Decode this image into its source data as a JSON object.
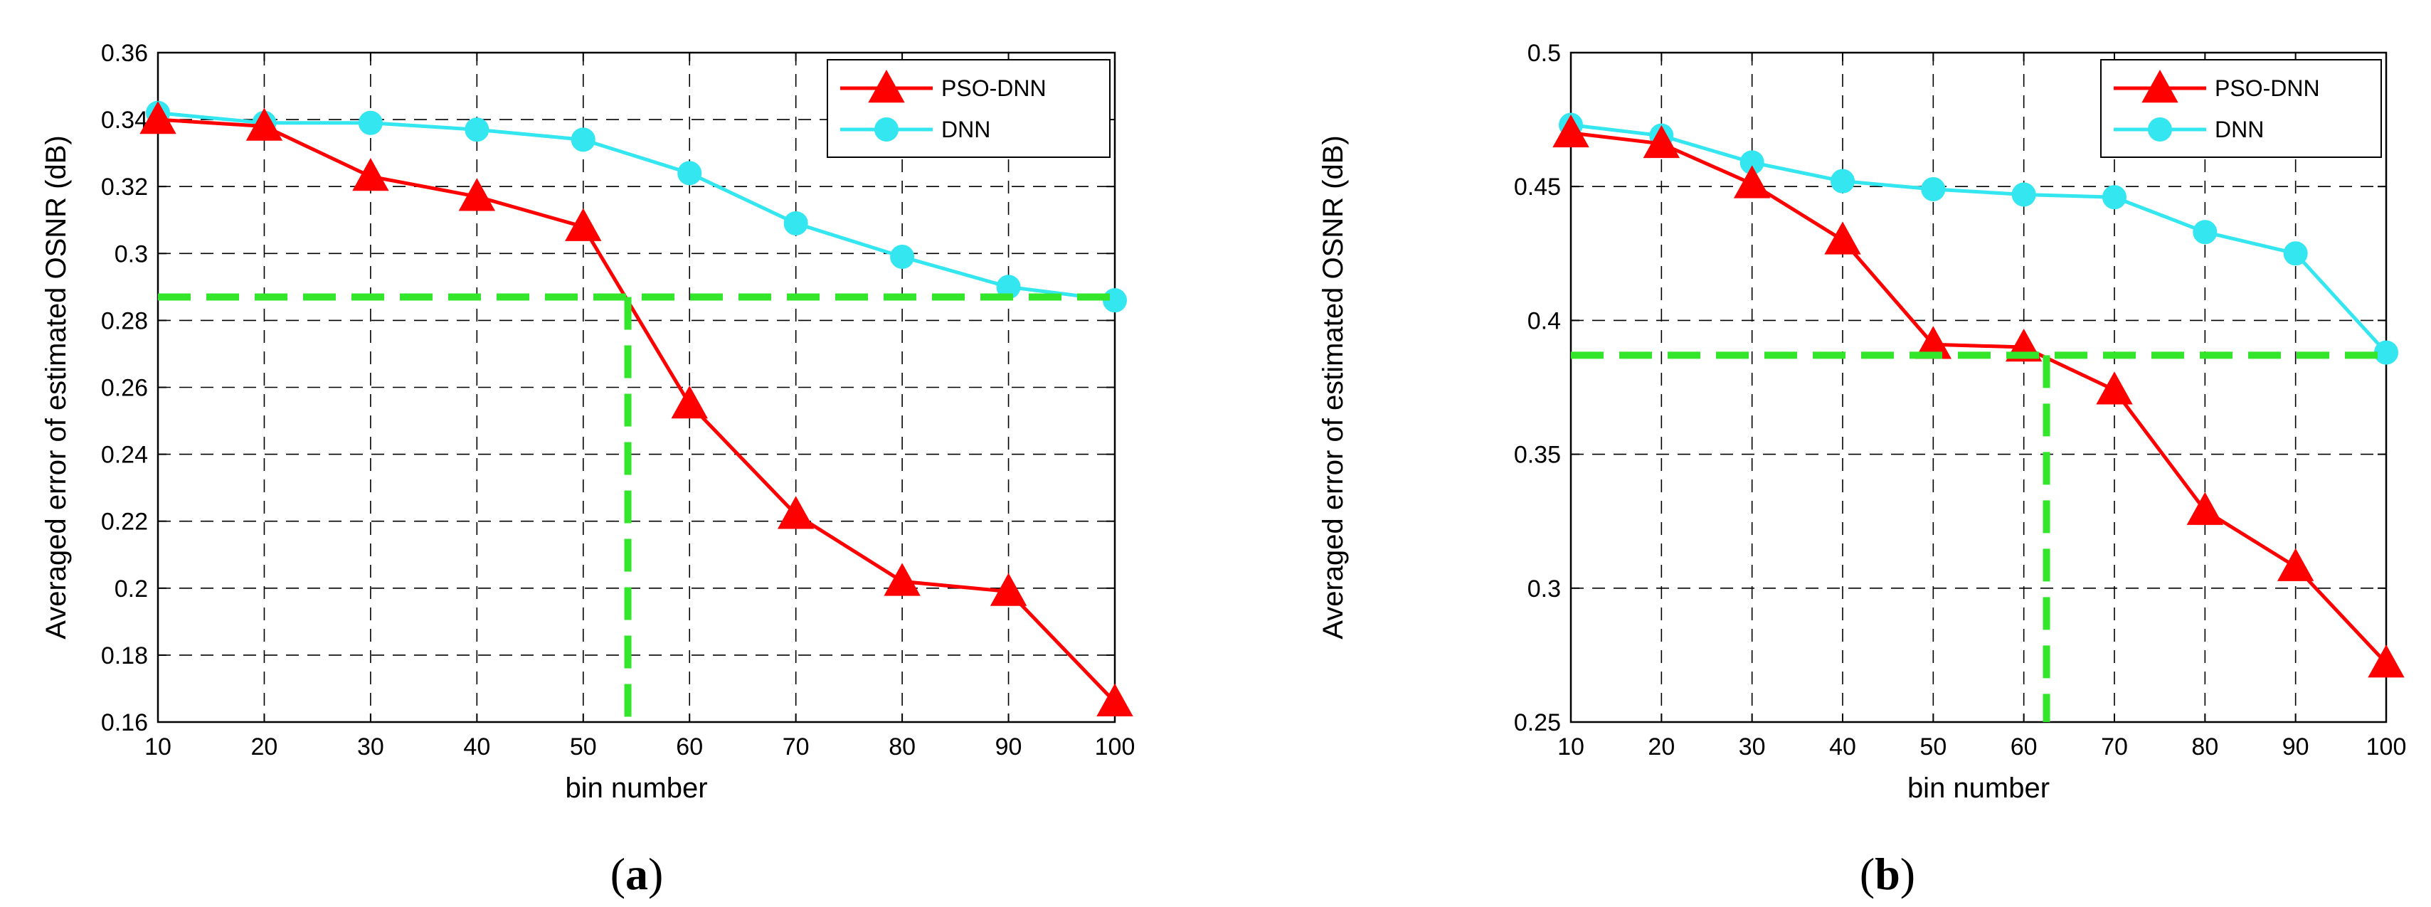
{
  "colors": {
    "pso_dnn": "#ff0000",
    "dnn": "#33e6f0",
    "threshold": "#33e62b",
    "grid": "#000000"
  },
  "chart_data": [
    {
      "type": "line",
      "panel_label": "a",
      "xlabel": "bin number",
      "ylabel": "Averaged error of estimated OSNR (dB)",
      "xlim": [
        10,
        100
      ],
      "ylim": [
        0.16,
        0.36
      ],
      "x_ticks": [
        10,
        20,
        30,
        40,
        50,
        60,
        70,
        80,
        90,
        100
      ],
      "x_tick_labels": [
        "10",
        "20",
        "30",
        "40",
        "50",
        "60",
        "70",
        "80",
        "90",
        "100"
      ],
      "y_ticks": [
        0.16,
        0.18,
        0.2,
        0.22,
        0.24,
        0.26,
        0.28,
        0.3,
        0.32,
        0.34,
        0.36
      ],
      "y_tick_labels": [
        "0.16",
        "0.18",
        "0.2",
        "0.22",
        "0.24",
        "0.26",
        "0.28",
        "0.3",
        "0.32",
        "0.34",
        "0.36"
      ],
      "grid": true,
      "legend_position": "top-right",
      "x": [
        10,
        20,
        30,
        40,
        50,
        60,
        70,
        80,
        90,
        100
      ],
      "series": [
        {
          "name": "PSO-DNN",
          "marker": "triangle",
          "values": [
            0.34,
            0.338,
            0.323,
            0.317,
            0.308,
            0.255,
            0.222,
            0.202,
            0.199,
            0.166
          ]
        },
        {
          "name": "DNN",
          "marker": "circle",
          "values": [
            0.342,
            0.339,
            0.339,
            0.337,
            0.334,
            0.324,
            0.309,
            0.299,
            0.29,
            0.286
          ]
        }
      ],
      "threshold": {
        "y": 0.287,
        "x": 54.2
      }
    },
    {
      "type": "line",
      "panel_label": "b",
      "xlabel": "bin number",
      "ylabel": "Averaged error of estimated OSNR (dB)",
      "xlim": [
        10,
        100
      ],
      "ylim": [
        0.25,
        0.5
      ],
      "x_ticks": [
        10,
        20,
        30,
        40,
        50,
        60,
        70,
        80,
        90,
        100
      ],
      "x_tick_labels": [
        "10",
        "20",
        "30",
        "40",
        "50",
        "60",
        "70",
        "80",
        "90",
        "100"
      ],
      "y_ticks": [
        0.25,
        0.3,
        0.35,
        0.4,
        0.45,
        0.5
      ],
      "y_tick_labels": [
        "0.25",
        "0.3",
        "0.35",
        "0.4",
        "0.45",
        "0.5"
      ],
      "grid": true,
      "legend_position": "top-right",
      "x": [
        10,
        20,
        30,
        40,
        50,
        60,
        70,
        80,
        90,
        100
      ],
      "series": [
        {
          "name": "PSO-DNN",
          "marker": "triangle",
          "values": [
            0.47,
            0.466,
            0.451,
            0.43,
            0.391,
            0.39,
            0.374,
            0.329,
            0.308,
            0.272
          ]
        },
        {
          "name": "DNN",
          "marker": "circle",
          "values": [
            0.473,
            0.469,
            0.459,
            0.452,
            0.449,
            0.447,
            0.446,
            0.433,
            0.425,
            0.388
          ]
        }
      ],
      "threshold": {
        "y": 0.387,
        "x": 62.5
      }
    }
  ]
}
